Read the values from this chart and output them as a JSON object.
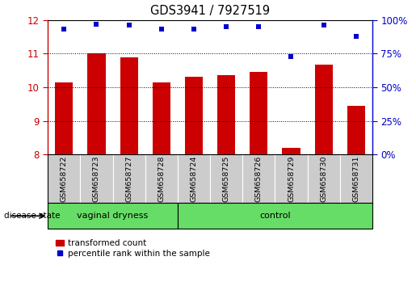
{
  "title": "GDS3941 / 7927519",
  "samples": [
    "GSM658722",
    "GSM658723",
    "GSM658727",
    "GSM658728",
    "GSM658724",
    "GSM658725",
    "GSM658726",
    "GSM658729",
    "GSM658730",
    "GSM658731"
  ],
  "bar_values": [
    10.15,
    11.02,
    10.88,
    10.15,
    10.3,
    10.35,
    10.45,
    8.2,
    10.68,
    9.45
  ],
  "dot_values": [
    93,
    97,
    96,
    93,
    93,
    95,
    95,
    73,
    96,
    88
  ],
  "groups": [
    {
      "label": "vaginal dryness",
      "start": 0,
      "end": 4
    },
    {
      "label": "control",
      "start": 4,
      "end": 10
    }
  ],
  "ylim_left": [
    8,
    12
  ],
  "ylim_right": [
    0,
    100
  ],
  "yticks_left": [
    8,
    9,
    10,
    11,
    12
  ],
  "yticks_right": [
    0,
    25,
    50,
    75,
    100
  ],
  "bar_color": "#CC0000",
  "dot_color": "#0000CC",
  "bar_width": 0.55,
  "legend_bar_label": "transformed count",
  "legend_dot_label": "percentile rank within the sample",
  "disease_state_label": "disease state"
}
